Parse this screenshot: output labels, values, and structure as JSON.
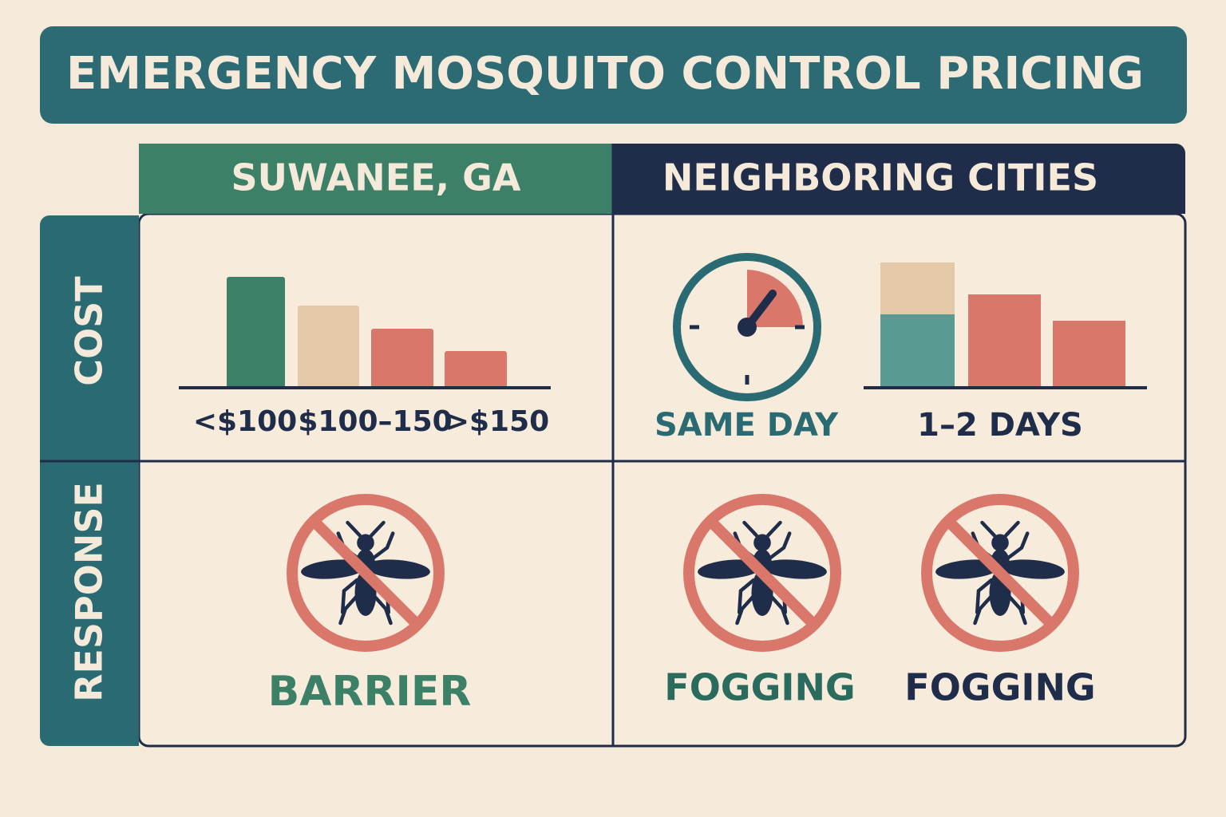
{
  "header": {
    "title": "EMERGENCY MOSQUITO CONTROL PRICING"
  },
  "columns": [
    "SUWANEE, GA",
    "NEIGHBORING CITIES"
  ],
  "rows": [
    "COST",
    "RESPONSE"
  ],
  "cost": {
    "suwanee_labels": [
      "<$100",
      "$100–150",
      ">$150"
    ],
    "neighboring_labels": [
      "SAME DAY",
      "1–2 DAYS"
    ]
  },
  "response": {
    "suwanee_label": "BARRIER",
    "neighboring_labels": [
      "FOGGING",
      "FOGGING"
    ]
  }
}
